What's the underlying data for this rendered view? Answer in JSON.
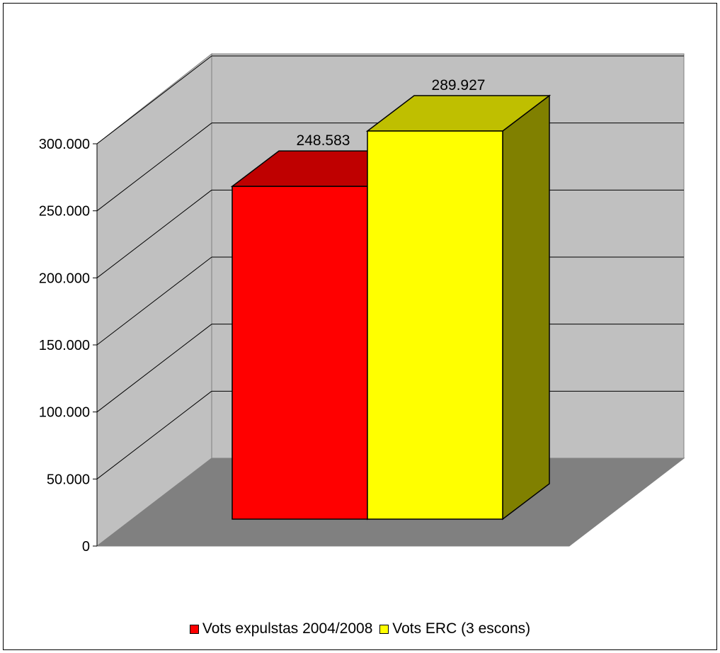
{
  "chart_data": {
    "type": "bar",
    "categories": [
      ""
    ],
    "series": [
      {
        "name": "Vots expulstas 2004/2008",
        "values": [
          248583
        ],
        "label": "248.583",
        "color": "#ff0000",
        "top_color": "#bf0000",
        "side_color": "#800000"
      },
      {
        "name": "Vots ERC (3 escons)",
        "values": [
          289927
        ],
        "label": "289.927",
        "color": "#ffff00",
        "top_color": "#bfbf00",
        "side_color": "#808000"
      }
    ],
    "title": "",
    "xlabel": "",
    "ylabel": "",
    "ylim": [
      0,
      300000
    ],
    "yticks": [
      0,
      50000,
      100000,
      150000,
      200000,
      250000,
      300000
    ],
    "ytick_labels": [
      "0",
      "50.000",
      "100.000",
      "150.000",
      "200.000",
      "250.000",
      "300.000"
    ],
    "grid": true,
    "legend_position": "bottom",
    "style": "3d"
  },
  "legend": {
    "items": [
      {
        "label": "Vots expulstas 2004/2008",
        "color": "#ff0000"
      },
      {
        "label": "Vots ERC (3 escons)",
        "color": "#ffff00"
      }
    ]
  }
}
